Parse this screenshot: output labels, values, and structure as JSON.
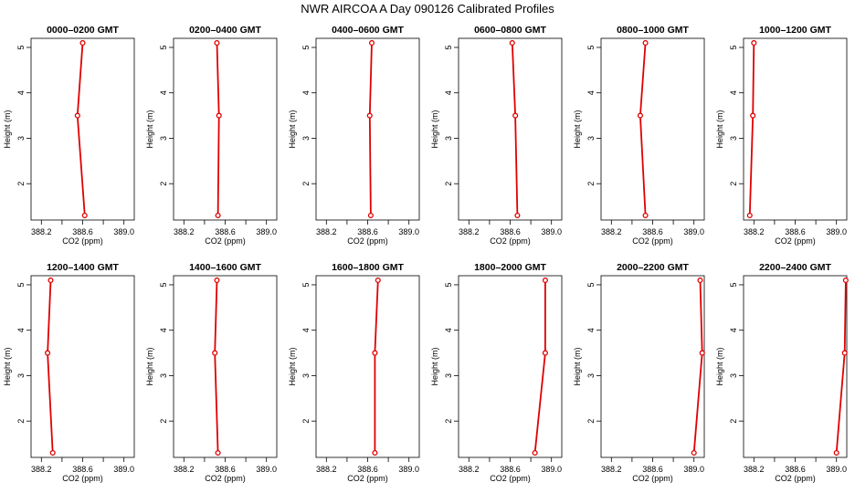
{
  "figure_title": "NWR AIRCOA A  Day 090126  Calibrated Profiles",
  "chart_data": [
    {
      "type": "line",
      "title": "0000–0200 GMT",
      "xlabel": "CO2 (ppm)",
      "ylabel": "Height (m)",
      "xlim": [
        388.1,
        389.1
      ],
      "ylim": [
        1.2,
        5.2
      ],
      "xticks": [
        "388.2",
        "388.6",
        "389.0"
      ],
      "yticks": [
        "2",
        "3",
        "4",
        "5"
      ],
      "points": [
        {
          "x": 388.6,
          "y": 5.1
        },
        {
          "x": 388.55,
          "y": 3.5
        },
        {
          "x": 388.62,
          "y": 1.3
        }
      ]
    },
    {
      "type": "line",
      "title": "0200–0400 GMT",
      "xlabel": "CO2 (ppm)",
      "ylabel": "Height (m)",
      "xlim": [
        388.1,
        389.1
      ],
      "ylim": [
        1.2,
        5.2
      ],
      "xticks": [
        "388.2",
        "388.6",
        "389.0"
      ],
      "yticks": [
        "2",
        "3",
        "4",
        "5"
      ],
      "points": [
        {
          "x": 388.52,
          "y": 5.1
        },
        {
          "x": 388.54,
          "y": 3.5
        },
        {
          "x": 388.53,
          "y": 1.3
        }
      ]
    },
    {
      "type": "line",
      "title": "0400–0600 GMT",
      "xlabel": "CO2 (ppm)",
      "ylabel": "Height (m)",
      "xlim": [
        388.1,
        389.1
      ],
      "ylim": [
        1.2,
        5.2
      ],
      "xticks": [
        "388.2",
        "388.6",
        "389.0"
      ],
      "yticks": [
        "2",
        "3",
        "4",
        "5"
      ],
      "points": [
        {
          "x": 388.64,
          "y": 5.1
        },
        {
          "x": 388.62,
          "y": 3.5
        },
        {
          "x": 388.63,
          "y": 1.3
        }
      ]
    },
    {
      "type": "line",
      "title": "0600–0800 GMT",
      "xlabel": "CO2 (ppm)",
      "ylabel": "Height (m)",
      "xlim": [
        388.1,
        389.1
      ],
      "ylim": [
        1.2,
        5.2
      ],
      "xticks": [
        "388.2",
        "388.6",
        "389.0"
      ],
      "yticks": [
        "2",
        "3",
        "4",
        "5"
      ],
      "points": [
        {
          "x": 388.62,
          "y": 5.1
        },
        {
          "x": 388.65,
          "y": 3.5
        },
        {
          "x": 388.67,
          "y": 1.3
        }
      ]
    },
    {
      "type": "line",
      "title": "0800–1000 GMT",
      "xlabel": "CO2 (ppm)",
      "ylabel": "Height (m)",
      "xlim": [
        388.1,
        389.1
      ],
      "ylim": [
        1.2,
        5.2
      ],
      "xticks": [
        "388.2",
        "388.6",
        "389.0"
      ],
      "yticks": [
        "2",
        "3",
        "4",
        "5"
      ],
      "points": [
        {
          "x": 388.53,
          "y": 5.1
        },
        {
          "x": 388.48,
          "y": 3.5
        },
        {
          "x": 388.53,
          "y": 1.3
        }
      ]
    },
    {
      "type": "line",
      "title": "1000–1200 GMT",
      "xlabel": "CO2 (ppm)",
      "ylabel": "Height (m)",
      "xlim": [
        388.1,
        389.1
      ],
      "ylim": [
        1.2,
        5.2
      ],
      "xticks": [
        "388.2",
        "388.6",
        "389.0"
      ],
      "yticks": [
        "2",
        "3",
        "4",
        "5"
      ],
      "points": [
        {
          "x": 388.2,
          "y": 5.1
        },
        {
          "x": 388.19,
          "y": 3.5
        },
        {
          "x": 388.16,
          "y": 1.3
        }
      ]
    },
    {
      "type": "line",
      "title": "1200–1400 GMT",
      "xlabel": "CO2 (ppm)",
      "ylabel": "Height (m)",
      "xlim": [
        388.1,
        389.1
      ],
      "ylim": [
        1.2,
        5.2
      ],
      "xticks": [
        "388.2",
        "388.6",
        "389.0"
      ],
      "yticks": [
        "2",
        "3",
        "4",
        "5"
      ],
      "points": [
        {
          "x": 388.29,
          "y": 5.1
        },
        {
          "x": 388.26,
          "y": 3.5
        },
        {
          "x": 388.31,
          "y": 1.3
        }
      ]
    },
    {
      "type": "line",
      "title": "1400–1600 GMT",
      "xlabel": "CO2 (ppm)",
      "ylabel": "Height (m)",
      "xlim": [
        388.1,
        389.1
      ],
      "ylim": [
        1.2,
        5.2
      ],
      "xticks": [
        "388.2",
        "388.6",
        "389.0"
      ],
      "yticks": [
        "2",
        "3",
        "4",
        "5"
      ],
      "points": [
        {
          "x": 388.52,
          "y": 5.1
        },
        {
          "x": 388.5,
          "y": 3.5
        },
        {
          "x": 388.53,
          "y": 1.3
        }
      ]
    },
    {
      "type": "line",
      "title": "1600–1800 GMT",
      "xlabel": "CO2 (ppm)",
      "ylabel": "Height (m)",
      "xlim": [
        388.1,
        389.1
      ],
      "ylim": [
        1.2,
        5.2
      ],
      "xticks": [
        "388.2",
        "388.6",
        "389.0"
      ],
      "yticks": [
        "2",
        "3",
        "4",
        "5"
      ],
      "points": [
        {
          "x": 388.7,
          "y": 5.1
        },
        {
          "x": 388.67,
          "y": 3.5
        },
        {
          "x": 388.67,
          "y": 1.3
        }
      ]
    },
    {
      "type": "line",
      "title": "1800–2000 GMT",
      "xlabel": "CO2 (ppm)",
      "ylabel": "Height (m)",
      "xlim": [
        388.1,
        389.1
      ],
      "ylim": [
        1.2,
        5.2
      ],
      "xticks": [
        "388.2",
        "388.6",
        "389.0"
      ],
      "yticks": [
        "2",
        "3",
        "4",
        "5"
      ],
      "points": [
        {
          "x": 388.94,
          "y": 5.1
        },
        {
          "x": 388.94,
          "y": 3.5
        },
        {
          "x": 388.84,
          "y": 1.3
        }
      ]
    },
    {
      "type": "line",
      "title": "2000–2200 GMT",
      "xlabel": "CO2 (ppm)",
      "ylabel": "Height (m)",
      "xlim": [
        388.1,
        389.1
      ],
      "ylim": [
        1.2,
        5.2
      ],
      "xticks": [
        "388.2",
        "388.6",
        "389.0"
      ],
      "yticks": [
        "2",
        "3",
        "4",
        "5"
      ],
      "points": [
        {
          "x": 389.06,
          "y": 5.1
        },
        {
          "x": 389.08,
          "y": 3.5
        },
        {
          "x": 389.0,
          "y": 1.3
        }
      ]
    },
    {
      "type": "line",
      "title": "2200–2400 GMT",
      "xlabel": "CO2 (ppm)",
      "ylabel": "Height (m)",
      "xlim": [
        388.1,
        389.1
      ],
      "ylim": [
        1.2,
        5.2
      ],
      "xticks": [
        "388.2",
        "388.6",
        "389.0"
      ],
      "yticks": [
        "2",
        "3",
        "4",
        "5"
      ],
      "points": [
        {
          "x": 389.09,
          "y": 5.1
        },
        {
          "x": 389.08,
          "y": 3.5
        },
        {
          "x": 389.0,
          "y": 1.3
        }
      ]
    }
  ]
}
